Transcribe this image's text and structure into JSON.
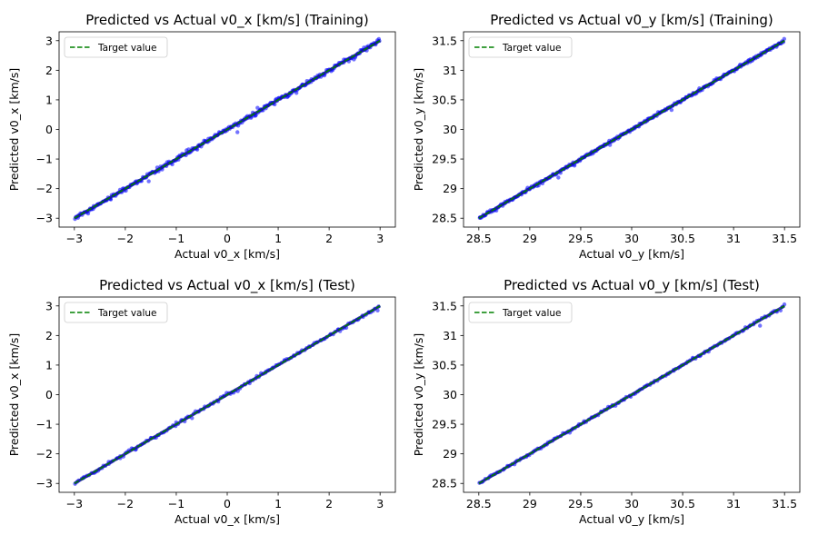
{
  "chart_data": [
    {
      "type": "scatter",
      "title": "Predicted vs Actual v0_x [km/s] (Training)",
      "xlabel": "Actual v0_x [km/s]",
      "ylabel": "Predicted v0_x [km/s]",
      "xlim": [
        -3.3,
        3.3
      ],
      "ylim": [
        -3.3,
        3.3
      ],
      "xticks": [
        -3,
        -2,
        -1,
        0,
        1,
        2,
        3
      ],
      "yticks": [
        -3,
        -2,
        -1,
        0,
        1,
        2,
        3
      ],
      "legend": {
        "label": "Target value",
        "position": "top-left"
      },
      "target_line": {
        "x": [
          -3,
          3
        ],
        "y": [
          -3,
          3
        ],
        "color": "#008000"
      },
      "scatter_color": "#0000ff",
      "range": [
        -3,
        3
      ],
      "n_points": 320,
      "noise": 0.03
    },
    {
      "type": "scatter",
      "title": "Predicted vs Actual v0_y [km/s] (Training)",
      "xlabel": "Actual v0_y [km/s]",
      "ylabel": "Predicted v0_y [km/s]",
      "xlim": [
        28.35,
        31.65
      ],
      "ylim": [
        28.35,
        31.65
      ],
      "xticks": [
        28.5,
        29.0,
        29.5,
        30.0,
        30.5,
        31.0,
        31.5
      ],
      "yticks": [
        28.5,
        29.0,
        29.5,
        30.0,
        30.5,
        31.0,
        31.5
      ],
      "legend": {
        "label": "Target value",
        "position": "top-left"
      },
      "target_line": {
        "x": [
          28.5,
          31.5
        ],
        "y": [
          28.5,
          31.5
        ],
        "color": "#008000"
      },
      "scatter_color": "#0000ff",
      "range": [
        28.5,
        31.5
      ],
      "n_points": 320,
      "noise": 0.02
    },
    {
      "type": "scatter",
      "title": "Predicted vs Actual v0_x [km/s] (Test)",
      "xlabel": "Actual v0_x [km/s]",
      "ylabel": "Predicted v0_x [km/s]",
      "xlim": [
        -3.3,
        3.3
      ],
      "ylim": [
        -3.3,
        3.3
      ],
      "xticks": [
        -3,
        -2,
        -1,
        0,
        1,
        2,
        3
      ],
      "yticks": [
        -3,
        -2,
        -1,
        0,
        1,
        2,
        3
      ],
      "legend": {
        "label": "Target value",
        "position": "top-left"
      },
      "target_line": {
        "x": [
          -3,
          3
        ],
        "y": [
          -3,
          3
        ],
        "color": "#008000"
      },
      "scatter_color": "#0000ff",
      "range": [
        -3,
        3
      ],
      "n_points": 160,
      "noise": 0.025
    },
    {
      "type": "scatter",
      "title": "Predicted vs Actual v0_y [km/s] (Test)",
      "xlabel": "Actual v0_y [km/s]",
      "ylabel": "Predicted v0_y [km/s]",
      "xlim": [
        28.35,
        31.65
      ],
      "ylim": [
        28.35,
        31.65
      ],
      "xticks": [
        28.5,
        29.0,
        29.5,
        30.0,
        30.5,
        31.0,
        31.5
      ],
      "yticks": [
        28.5,
        29.0,
        29.5,
        30.0,
        30.5,
        31.0,
        31.5
      ],
      "legend": {
        "label": "Target value",
        "position": "top-left"
      },
      "target_line": {
        "x": [
          28.5,
          31.5
        ],
        "y": [
          28.5,
          31.5
        ],
        "color": "#008000"
      },
      "scatter_color": "#0000ff",
      "range": [
        28.5,
        31.5
      ],
      "n_points": 160,
      "noise": 0.018
    }
  ]
}
